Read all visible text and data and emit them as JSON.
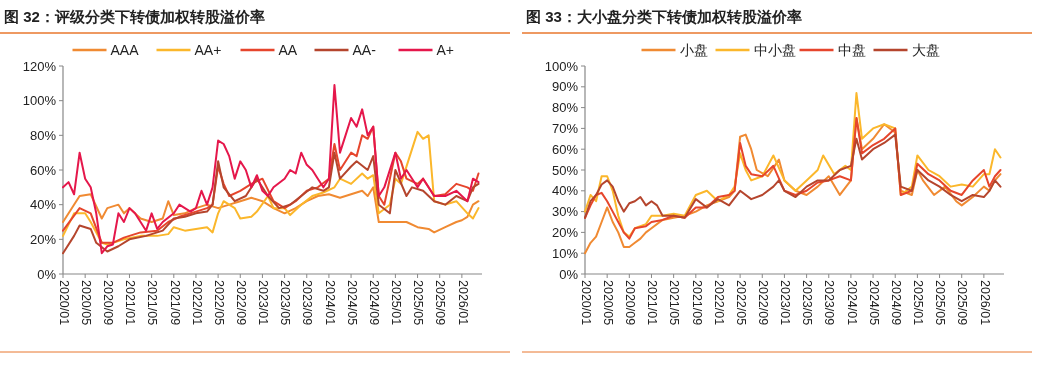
{
  "chart_data": [
    {
      "type": "line",
      "title": "图 32：评级分类下转债加权转股溢价率",
      "legend": "top",
      "grid": false,
      "xlim": [
        "2020-01",
        "2026-04-20"
      ],
      "xticks": [
        {
          "value": "2020-01",
          "label": "2020/01"
        },
        {
          "value": "2020-05",
          "label": "2020/05"
        },
        {
          "value": "2020-09",
          "label": "2020/09"
        },
        {
          "value": "2021-01",
          "label": "2021/01"
        },
        {
          "value": "2021-05",
          "label": "2021/05"
        },
        {
          "value": "2021-09",
          "label": "2021/09"
        },
        {
          "value": "2022-01",
          "label": "2022/01"
        },
        {
          "value": "2022-05",
          "label": "2022/05"
        },
        {
          "value": "2022-09",
          "label": "2022/09"
        },
        {
          "value": "2023-01",
          "label": "2023/01"
        },
        {
          "value": "2023-05",
          "label": "2023/05"
        },
        {
          "value": "2023-09",
          "label": "2023/09"
        },
        {
          "value": "2024-01",
          "label": "2024/01"
        },
        {
          "value": "2024-05",
          "label": "2024/05"
        },
        {
          "value": "2024-09",
          "label": "2024/09"
        },
        {
          "value": "2025-01",
          "label": "2025/01"
        },
        {
          "value": "2025-05",
          "label": "2025/05"
        },
        {
          "value": "2025-09",
          "label": "2025/09"
        },
        {
          "value": "2026-01",
          "label": "2026/01"
        }
      ],
      "ylim": [
        0,
        120
      ],
      "yticks": [
        {
          "value": 0,
          "label": "0%"
        },
        {
          "value": 20,
          "label": "20%"
        },
        {
          "value": 40,
          "label": "40%"
        },
        {
          "value": 60,
          "label": "60%"
        },
        {
          "value": 80,
          "label": "80%"
        },
        {
          "value": 100,
          "label": "100%"
        },
        {
          "value": 120,
          "label": "120%"
        }
      ],
      "series": [
        {
          "name": "AAA",
          "color": "#f08a32",
          "x": [
            "2020-01",
            "2020-04",
            "2020-06",
            "2020-08",
            "2020-09",
            "2020-11",
            "2020-12",
            "2021-01",
            "2021-03",
            "2021-05",
            "2021-07",
            "2021-08",
            "2021-09",
            "2021-11",
            "2022-01",
            "2022-03",
            "2022-05",
            "2022-07",
            "2022-09",
            "2022-11",
            "2023-01",
            "2023-03",
            "2023-05",
            "2023-07",
            "2023-09",
            "2023-11",
            "2024-01",
            "2024-03",
            "2024-05",
            "2024-07",
            "2024-08",
            "2024-09",
            "2024-10",
            "2024-12",
            "2025-03",
            "2025-05",
            "2025-07",
            "2025-08",
            "2025-10",
            "2025-12",
            "2026-01",
            "2026-02",
            "2026-03",
            "2026-04"
          ],
          "values": [
            30,
            45,
            46,
            32,
            38,
            40,
            35,
            38,
            32,
            30,
            32,
            42,
            34,
            35,
            38,
            40,
            38,
            40,
            42,
            44,
            42,
            38,
            35,
            38,
            42,
            45,
            46,
            44,
            46,
            48,
            45,
            50,
            30,
            30,
            30,
            27,
            26,
            24,
            27,
            30,
            31,
            33,
            40,
            42
          ]
        },
        {
          "name": "AA+",
          "color": "#fbb72b",
          "x": [
            "2020-01",
            "2020-03",
            "2020-05",
            "2020-06",
            "2020-08",
            "2020-09",
            "2020-12",
            "2021-03",
            "2021-06",
            "2021-08",
            "2021-09",
            "2021-11",
            "2022-01",
            "2022-03",
            "2022-04",
            "2022-05",
            "2022-06",
            "2022-08",
            "2022-09",
            "2022-11",
            "2022-12",
            "2023-02",
            "2023-03",
            "2023-05",
            "2023-06",
            "2023-08",
            "2023-10",
            "2023-12",
            "2024-02",
            "2024-03",
            "2024-05",
            "2024-07",
            "2024-08",
            "2024-09",
            "2024-10",
            "2024-12",
            "2025-01",
            "2025-02",
            "2025-05",
            "2025-06",
            "2025-07",
            "2025-08",
            "2025-10",
            "2025-12",
            "2026-02",
            "2026-03",
            "2026-04"
          ],
          "values": [
            22,
            35,
            35,
            30,
            18,
            17,
            20,
            22,
            22,
            23,
            27,
            25,
            26,
            27,
            24,
            35,
            42,
            38,
            32,
            33,
            36,
            45,
            38,
            38,
            34,
            40,
            45,
            47,
            50,
            55,
            52,
            58,
            55,
            57,
            35,
            40,
            55,
            52,
            82,
            78,
            80,
            42,
            40,
            42,
            35,
            32,
            38
          ]
        },
        {
          "name": "AA",
          "color": "#e6452c",
          "x": [
            "2020-01",
            "2020-04",
            "2020-06",
            "2020-08",
            "2020-10",
            "2020-12",
            "2021-03",
            "2021-06",
            "2021-08",
            "2021-10",
            "2022-01",
            "2022-03",
            "2022-04",
            "2022-05",
            "2022-06",
            "2022-07",
            "2022-09",
            "2022-11",
            "2023-01",
            "2023-03",
            "2023-05",
            "2023-07",
            "2023-09",
            "2023-11",
            "2024-01",
            "2024-02",
            "2024-03",
            "2024-05",
            "2024-06",
            "2024-07",
            "2024-08",
            "2024-09",
            "2024-10",
            "2024-11",
            "2025-01",
            "2025-02",
            "2025-03",
            "2025-05",
            "2025-06",
            "2025-07",
            "2025-08",
            "2025-10",
            "2025-12",
            "2026-02",
            "2026-03",
            "2026-04"
          ],
          "values": [
            25,
            38,
            35,
            18,
            18,
            21,
            24,
            25,
            30,
            33,
            36,
            38,
            40,
            62,
            52,
            45,
            48,
            52,
            55,
            42,
            38,
            42,
            48,
            50,
            55,
            75,
            60,
            70,
            68,
            80,
            78,
            85,
            45,
            40,
            70,
            65,
            55,
            52,
            55,
            50,
            45,
            46,
            52,
            50,
            48,
            58
          ]
        },
        {
          "name": "AA-",
          "color": "#b5452d",
          "x": [
            "2020-01",
            "2020-03",
            "2020-04",
            "2020-06",
            "2020-07",
            "2020-09",
            "2020-11",
            "2021-01",
            "2021-04",
            "2021-07",
            "2021-09",
            "2021-11",
            "2022-01",
            "2022-03",
            "2022-04",
            "2022-05",
            "2022-06",
            "2022-08",
            "2022-10",
            "2022-12",
            "2023-02",
            "2023-04",
            "2023-06",
            "2023-08",
            "2023-10",
            "2023-12",
            "2024-01",
            "2024-02",
            "2024-03",
            "2024-05",
            "2024-06",
            "2024-08",
            "2024-09",
            "2024-10",
            "2024-12",
            "2025-01",
            "2025-03",
            "2025-04",
            "2025-06",
            "2025-08",
            "2025-10",
            "2025-12",
            "2026-02",
            "2026-03",
            "2026-04"
          ],
          "values": [
            12,
            22,
            28,
            26,
            18,
            13,
            16,
            20,
            22,
            25,
            32,
            33,
            35,
            36,
            40,
            65,
            50,
            42,
            45,
            55,
            45,
            38,
            40,
            45,
            50,
            48,
            50,
            70,
            55,
            62,
            65,
            60,
            68,
            40,
            35,
            60,
            45,
            50,
            48,
            42,
            40,
            45,
            42,
            50,
            52
          ]
        },
        {
          "name": "A+",
          "color": "#e5174b",
          "x": [
            "2020-01",
            "2020-02",
            "2020-03",
            "2020-04",
            "2020-05",
            "2020-06",
            "2020-07",
            "2020-08",
            "2020-09",
            "2020-10",
            "2020-11",
            "2020-12",
            "2021-01",
            "2021-02",
            "2021-04",
            "2021-05",
            "2021-06",
            "2021-07",
            "2021-09",
            "2021-10",
            "2021-12",
            "2022-01",
            "2022-02",
            "2022-03",
            "2022-04",
            "2022-05",
            "2022-06",
            "2022-07",
            "2022-08",
            "2022-09",
            "2022-10",
            "2022-11",
            "2022-12",
            "2023-01",
            "2023-02",
            "2023-03",
            "2023-05",
            "2023-06",
            "2023-07",
            "2023-08",
            "2023-09",
            "2023-10",
            "2023-11",
            "2023-12",
            "2024-01",
            "2024-02",
            "2024-03",
            "2024-04",
            "2024-05",
            "2024-06",
            "2024-07",
            "2024-08",
            "2024-09",
            "2024-10",
            "2024-11",
            "2025-01",
            "2025-02",
            "2025-03",
            "2025-05",
            "2025-06",
            "2025-08",
            "2025-10",
            "2025-12",
            "2026-02",
            "2026-03",
            "2026-04"
          ],
          "values": [
            50,
            53,
            46,
            70,
            55,
            50,
            35,
            12,
            16,
            17,
            35,
            30,
            38,
            35,
            25,
            35,
            26,
            30,
            35,
            40,
            36,
            38,
            48,
            40,
            50,
            77,
            75,
            68,
            55,
            65,
            60,
            50,
            57,
            48,
            45,
            50,
            55,
            60,
            58,
            70,
            63,
            60,
            55,
            50,
            55,
            109,
            70,
            80,
            90,
            85,
            95,
            80,
            85,
            45,
            50,
            70,
            55,
            60,
            50,
            55,
            45,
            45,
            48,
            42,
            55,
            53
          ]
        }
      ]
    },
    {
      "type": "line",
      "title": "图 33：大小盘分类下转债加权转股溢价率",
      "legend": "top",
      "grid": false,
      "xlim": [
        "2020-01",
        "2026-04-20"
      ],
      "xticks": [
        {
          "value": "2020-01",
          "label": "2020/01"
        },
        {
          "value": "2020-05",
          "label": "2020/05"
        },
        {
          "value": "2020-09",
          "label": "2020/09"
        },
        {
          "value": "2021-01",
          "label": "2021/01"
        },
        {
          "value": "2021-05",
          "label": "2021/05"
        },
        {
          "value": "2021-09",
          "label": "2021/09"
        },
        {
          "value": "2022-01",
          "label": "2022/01"
        },
        {
          "value": "2022-05",
          "label": "2022/05"
        },
        {
          "value": "2022-09",
          "label": "2022/09"
        },
        {
          "value": "2023-01",
          "label": "2023/01"
        },
        {
          "value": "2023-05",
          "label": "2023/05"
        },
        {
          "value": "2023-09",
          "label": "2023/09"
        },
        {
          "value": "2024-01",
          "label": "2024/01"
        },
        {
          "value": "2024-05",
          "label": "2024/05"
        },
        {
          "value": "2024-09",
          "label": "2024/09"
        },
        {
          "value": "2025-01",
          "label": "2025/01"
        },
        {
          "value": "2025-05",
          "label": "2025/05"
        },
        {
          "value": "2025-09",
          "label": "2025/09"
        },
        {
          "value": "2026-01",
          "label": "2026/01"
        }
      ],
      "ylim": [
        0,
        100
      ],
      "yticks": [
        {
          "value": 0,
          "label": "0%"
        },
        {
          "value": 10,
          "label": "10%"
        },
        {
          "value": 20,
          "label": "20%"
        },
        {
          "value": 30,
          "label": "30%"
        },
        {
          "value": 40,
          "label": "40%"
        },
        {
          "value": 50,
          "label": "50%"
        },
        {
          "value": 60,
          "label": "60%"
        },
        {
          "value": 70,
          "label": "70%"
        },
        {
          "value": 80,
          "label": "80%"
        },
        {
          "value": 90,
          "label": "90%"
        },
        {
          "value": 100,
          "label": "100%"
        }
      ],
      "series": [
        {
          "name": "小盘",
          "color": "#f08a32",
          "x": [
            "2020-01",
            "2020-02",
            "2020-03",
            "2020-04",
            "2020-05",
            "2020-06",
            "2020-07",
            "2020-08",
            "2020-09",
            "2020-10",
            "2020-11",
            "2020-12",
            "2021-01",
            "2021-03",
            "2021-05",
            "2021-07",
            "2021-09",
            "2021-11",
            "2022-01",
            "2022-03",
            "2022-04",
            "2022-05",
            "2022-06",
            "2022-07",
            "2022-08",
            "2022-10",
            "2022-12",
            "2023-01",
            "2023-03",
            "2023-05",
            "2023-07",
            "2023-09",
            "2023-11",
            "2024-01",
            "2024-02",
            "2024-03",
            "2024-05",
            "2024-07",
            "2024-09",
            "2024-10",
            "2024-12",
            "2025-01",
            "2025-02",
            "2025-04",
            "2025-06",
            "2025-08",
            "2025-09",
            "2025-11",
            "2026-01",
            "2026-02",
            "2026-03",
            "2026-04"
          ],
          "values": [
            10,
            15,
            18,
            25,
            32,
            25,
            20,
            13,
            13,
            15,
            17,
            20,
            22,
            26,
            27,
            28,
            30,
            33,
            35,
            37,
            40,
            66,
            67,
            60,
            50,
            47,
            55,
            45,
            40,
            38,
            42,
            47,
            38,
            45,
            75,
            60,
            65,
            72,
            68,
            40,
            38,
            50,
            45,
            38,
            42,
            35,
            33,
            37,
            42,
            40,
            45,
            48
          ]
        },
        {
          "name": "中小盘",
          "color": "#fbb72b",
          "x": [
            "2020-01",
            "2020-02",
            "2020-03",
            "2020-04",
            "2020-05",
            "2020-06",
            "2020-07",
            "2020-08",
            "2020-09",
            "2020-10",
            "2020-12",
            "2021-01",
            "2021-03",
            "2021-05",
            "2021-07",
            "2021-09",
            "2021-11",
            "2022-01",
            "2022-03",
            "2022-04",
            "2022-05",
            "2022-06",
            "2022-07",
            "2022-09",
            "2022-11",
            "2023-01",
            "2023-03",
            "2023-05",
            "2023-07",
            "2023-08",
            "2023-10",
            "2023-12",
            "2024-01",
            "2024-02",
            "2024-03",
            "2024-05",
            "2024-07",
            "2024-09",
            "2024-10",
            "2024-12",
            "2025-01",
            "2025-03",
            "2025-05",
            "2025-07",
            "2025-09",
            "2025-11",
            "2026-01",
            "2026-02",
            "2026-03",
            "2026-04"
          ],
          "values": [
            30,
            38,
            35,
            47,
            47,
            40,
            28,
            20,
            18,
            22,
            24,
            28,
            28,
            29,
            28,
            38,
            40,
            35,
            38,
            42,
            58,
            50,
            45,
            47,
            57,
            45,
            40,
            45,
            50,
            57,
            48,
            52,
            50,
            87,
            65,
            70,
            72,
            70,
            38,
            42,
            57,
            50,
            47,
            42,
            43,
            42,
            48,
            48,
            60,
            56
          ]
        },
        {
          "name": "中盘",
          "color": "#e6452c",
          "x": [
            "2020-01",
            "2020-02",
            "2020-03",
            "2020-04",
            "2020-05",
            "2020-06",
            "2020-07",
            "2020-08",
            "2020-09",
            "2020-10",
            "2020-12",
            "2021-01",
            "2021-03",
            "2021-05",
            "2021-07",
            "2021-09",
            "2021-11",
            "2022-01",
            "2022-03",
            "2022-04",
            "2022-05",
            "2022-06",
            "2022-07",
            "2022-09",
            "2022-11",
            "2023-01",
            "2023-03",
            "2023-05",
            "2023-07",
            "2023-09",
            "2023-11",
            "2024-01",
            "2024-02",
            "2024-03",
            "2024-05",
            "2024-07",
            "2024-09",
            "2024-10",
            "2024-12",
            "2025-01",
            "2025-03",
            "2025-05",
            "2025-07",
            "2025-09",
            "2025-11",
            "2026-01",
            "2026-02",
            "2026-03",
            "2026-04"
          ],
          "values": [
            27,
            33,
            38,
            39,
            35,
            30,
            25,
            20,
            17,
            22,
            23,
            25,
            26,
            28,
            27,
            32,
            32,
            37,
            38,
            40,
            63,
            52,
            48,
            47,
            52,
            40,
            38,
            40,
            44,
            45,
            47,
            45,
            75,
            58,
            62,
            65,
            70,
            38,
            40,
            53,
            48,
            45,
            40,
            38,
            45,
            50,
            42,
            47,
            50
          ]
        },
        {
          "name": "大盘",
          "color": "#b5452d",
          "x": [
            "2020-01",
            "2020-02",
            "2020-03",
            "2020-04",
            "2020-05",
            "2020-06",
            "2020-07",
            "2020-08",
            "2020-09",
            "2020-10",
            "2020-11",
            "2020-12",
            "2021-01",
            "2021-02",
            "2021-03",
            "2021-05",
            "2021-07",
            "2021-09",
            "2021-11",
            "2022-01",
            "2022-03",
            "2022-05",
            "2022-07",
            "2022-09",
            "2022-11",
            "2022-12",
            "2023-01",
            "2023-03",
            "2023-05",
            "2023-07",
            "2023-09",
            "2023-11",
            "2024-01",
            "2024-02",
            "2024-03",
            "2024-05",
            "2024-07",
            "2024-09",
            "2024-10",
            "2024-12",
            "2025-01",
            "2025-03",
            "2025-05",
            "2025-07",
            "2025-09",
            "2025-11",
            "2026-01",
            "2026-02",
            "2026-03",
            "2026-04"
          ],
          "values": [
            27,
            35,
            38,
            43,
            45,
            42,
            35,
            30,
            34,
            35,
            37,
            33,
            35,
            33,
            28,
            28,
            27,
            36,
            32,
            36,
            33,
            40,
            36,
            38,
            42,
            45,
            40,
            37,
            42,
            45,
            45,
            50,
            52,
            65,
            55,
            60,
            63,
            67,
            42,
            40,
            50,
            45,
            42,
            38,
            35,
            38,
            37,
            40,
            45,
            42
          ]
        }
      ]
    }
  ]
}
